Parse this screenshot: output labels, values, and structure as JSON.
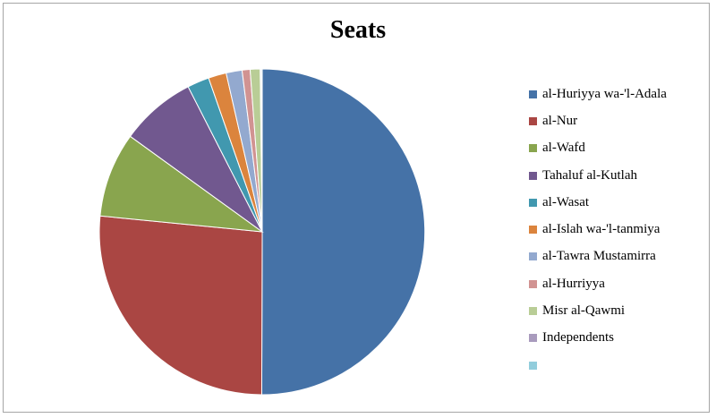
{
  "chart_data": {
    "type": "pie",
    "title": "Seats",
    "legend_position": "right",
    "series": [
      {
        "name": "al-Huriyya wa-'l-Adala",
        "value": 50.6,
        "color": "#4572A7"
      },
      {
        "name": "al-Nur",
        "value": 26.8,
        "color": "#AA4643"
      },
      {
        "name": "al-Wafd",
        "value": 8.5,
        "color": "#89A54E"
      },
      {
        "name": "Tahaluf al-Kutlah",
        "value": 7.6,
        "color": "#71588F"
      },
      {
        "name": "al-Wasat",
        "value": 2.2,
        "color": "#4198AF"
      },
      {
        "name": "al-Islah wa-'l-tanmiya",
        "value": 1.8,
        "color": "#DB843D"
      },
      {
        "name": "al-Tawra Mustamirra",
        "value": 1.6,
        "color": "#93A9CF"
      },
      {
        "name": "al-Hurriyya",
        "value": 0.8,
        "color": "#D19392"
      },
      {
        "name": "Misr al-Qawmi",
        "value": 1.0,
        "color": "#B9CD96"
      },
      {
        "name": "Independents",
        "value": 0.1,
        "color": "#A99BBD"
      },
      {
        "name": "",
        "value": 0.1,
        "color": "#92CDDC"
      }
    ]
  }
}
